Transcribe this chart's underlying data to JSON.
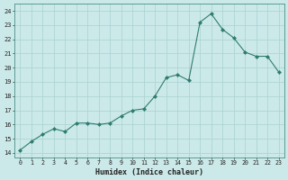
{
  "x": [
    0,
    1,
    2,
    3,
    4,
    5,
    6,
    7,
    8,
    9,
    10,
    11,
    12,
    13,
    14,
    15,
    16,
    17,
    18,
    19,
    20,
    21,
    22,
    23
  ],
  "y": [
    14.2,
    14.8,
    15.3,
    15.7,
    15.5,
    16.1,
    16.1,
    16.0,
    16.1,
    16.6,
    17.0,
    17.1,
    18.0,
    19.3,
    19.5,
    19.1,
    23.2,
    23.8,
    22.7,
    22.1,
    21.1,
    20.8,
    20.8,
    19.7
  ],
  "line_color": "#2e7d6e",
  "marker_color": "#2e7d6e",
  "bg_color": "#cce9e9",
  "grid_color": "#aed4d4",
  "xlabel": "Humidex (Indice chaleur)",
  "ylabel_ticks": [
    14,
    15,
    16,
    17,
    18,
    19,
    20,
    21,
    22,
    23,
    24
  ],
  "xlim": [
    -0.5,
    23.5
  ],
  "ylim": [
    13.7,
    24.5
  ],
  "title": ""
}
